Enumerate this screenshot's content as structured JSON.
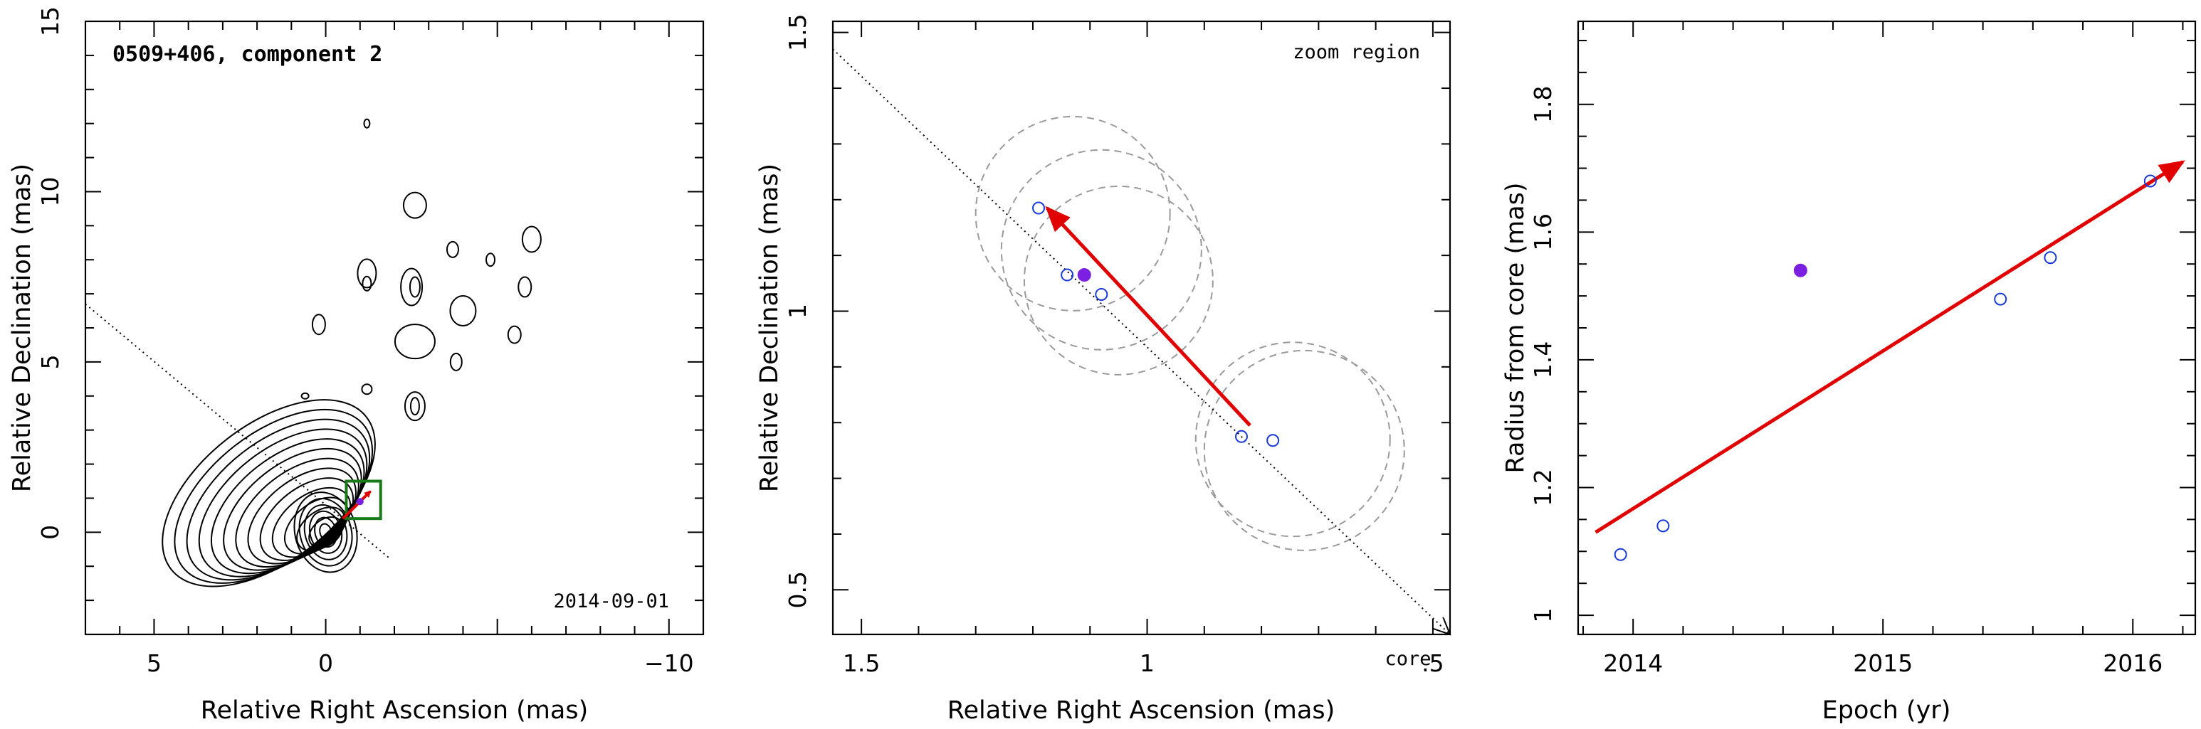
{
  "chart_data": [
    {
      "type": "contour",
      "title": "0509+406, component 2",
      "annotation": "2014-09-01",
      "xlabel": "Relative Right Ascension (mas)",
      "ylabel": "Relative Declination (mas)",
      "xlim": [
        7,
        -11
      ],
      "ylim": [
        -3,
        15
      ],
      "xticks": [
        "5",
        "0",
        "−10"
      ],
      "yticks": [
        "0",
        "5",
        "10",
        "15"
      ],
      "jet_axis": {
        "from": [
          7,
          6.7
        ],
        "to": [
          -1.9,
          -0.8
        ]
      },
      "component_position": [
        -1.0,
        0.9
      ],
      "zoom_box": {
        "x": [
          -0.6,
          -1.6
        ],
        "y": [
          0.4,
          1.5
        ]
      }
    },
    {
      "type": "scatter",
      "annotation": "zoom region",
      "xlabel": "Relative Right Ascension (mas)",
      "ylabel": "Relative Declination (mas)",
      "xlim": [
        1.55,
        0.47
      ],
      "ylim": [
        0.42,
        1.52
      ],
      "xticks": [
        "1.5",
        "1",
        ".5"
      ],
      "yticks": [
        "0.5",
        "1",
        "1.5"
      ],
      "core_label": "core",
      "points": [
        {
          "x": 1.19,
          "y": 1.185,
          "filled": false
        },
        {
          "x": 1.14,
          "y": 1.065,
          "filled": false
        },
        {
          "x": 1.11,
          "y": 1.065,
          "filled": true
        },
        {
          "x": 1.08,
          "y": 1.03,
          "filled": false
        },
        {
          "x": 0.835,
          "y": 0.775,
          "filled": false
        },
        {
          "x": 0.78,
          "y": 0.768,
          "filled": false
        }
      ],
      "fit_circles": [
        {
          "x": 1.13,
          "y": 1.175,
          "r": 0.17
        },
        {
          "x": 1.08,
          "y": 1.11,
          "r": 0.175
        },
        {
          "x": 1.05,
          "y": 1.055,
          "r": 0.165
        },
        {
          "x": 0.745,
          "y": 0.77,
          "r": 0.17
        },
        {
          "x": 0.725,
          "y": 0.75,
          "r": 0.175
        }
      ],
      "motion_vector": {
        "from": [
          0.82,
          0.795
        ],
        "to": [
          1.175,
          1.185
        ]
      },
      "jet_axis": {
        "from": [
          1.55,
          1.47
        ],
        "to": [
          0.47,
          0.42
        ]
      }
    },
    {
      "type": "scatter",
      "xlabel": "Epoch (yr)",
      "ylabel": "Radius from core (mas)",
      "xlim": [
        2013.78,
        2016.25
      ],
      "ylim": [
        0.97,
        1.93
      ],
      "xticks": [
        "2014",
        "2015",
        "2016"
      ],
      "yticks": [
        "1",
        "1.2",
        "1.4",
        "1.6",
        "1.8"
      ],
      "points": [
        {
          "x": 2013.95,
          "y": 1.095,
          "filled": false
        },
        {
          "x": 2014.12,
          "y": 1.14,
          "filled": false
        },
        {
          "x": 2014.67,
          "y": 1.54,
          "filled": true
        },
        {
          "x": 2015.47,
          "y": 1.495,
          "filled": false
        },
        {
          "x": 2015.67,
          "y": 1.56,
          "filled": false
        },
        {
          "x": 2016.07,
          "y": 1.68,
          "filled": false
        }
      ],
      "fit_line": {
        "from": [
          2013.85,
          1.13
        ],
        "to": [
          2016.2,
          1.71
        ]
      }
    }
  ]
}
